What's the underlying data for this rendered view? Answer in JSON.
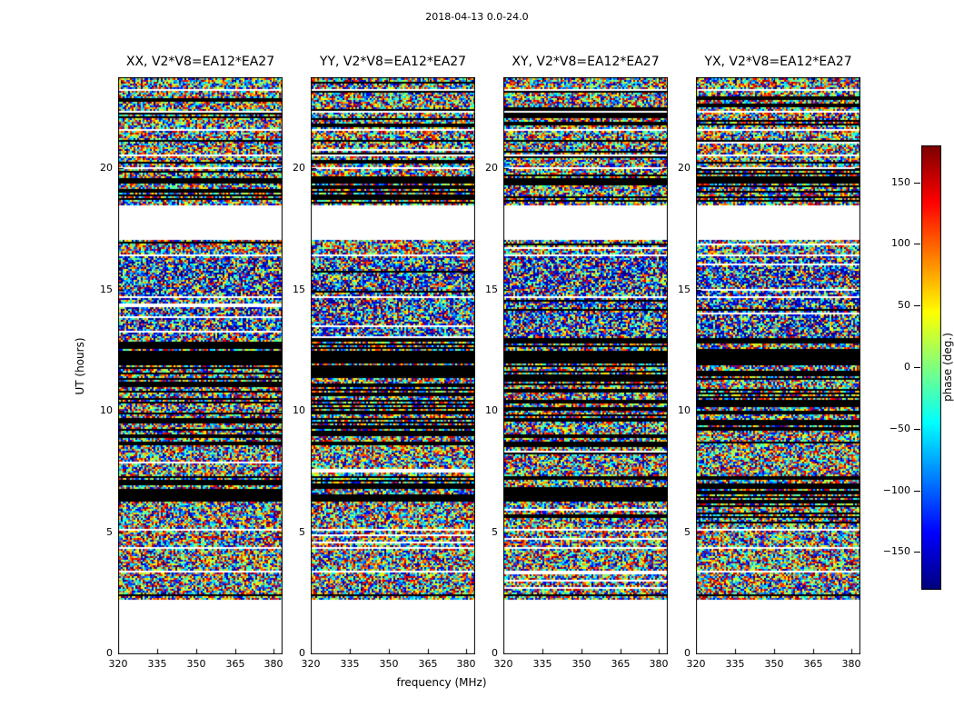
{
  "figure": {
    "title": "2018-04-13 0.0-24.0",
    "xlabel": "frequency (MHz)",
    "ylabel": "UT (hours)",
    "colorbar_label": "phase (deg.)",
    "background": "#ffffff"
  },
  "chart_data": {
    "type": "heatmap",
    "title": "2018-04-13 0.0-24.0",
    "xlabel": "frequency (MHz)",
    "ylabel": "UT (hours)",
    "xlim": [
      320,
      383
    ],
    "xticks": [
      320,
      335,
      350,
      365,
      380
    ],
    "ylim": [
      0,
      23.75
    ],
    "yticks": [
      0,
      5,
      10,
      15,
      20
    ],
    "panels": [
      {
        "corr": "XX",
        "title": "XX, V2*V8=EA12*EA27"
      },
      {
        "corr": "YY",
        "title": "YY, V2*V8=EA12*EA27"
      },
      {
        "corr": "XY",
        "title": "XY, V2*V8=EA12*EA27"
      },
      {
        "corr": "YX",
        "title": "YX, V2*V8=EA12*EA27"
      }
    ],
    "colorbar": {
      "label": "phase (deg.)",
      "min": -180,
      "max": 180,
      "ticks": [
        150,
        100,
        50,
        0,
        -50,
        -100,
        -150
      ],
      "colormap": "jet"
    },
    "values": "random-looking interferometric phase noise (uniform -180..180 deg) organized in horizontal time bands; same band structure in all four correlation panels",
    "band_format": "[ut_start_hours, ut_end_hours, kind, black_row_fraction] where kind is blank|noise|noise_blue|black|mix",
    "bands": [
      [
        0.0,
        2.3,
        "blank"
      ],
      [
        2.3,
        2.44,
        "noise"
      ],
      [
        2.44,
        2.5,
        "black"
      ],
      [
        2.5,
        3.42,
        "noise"
      ],
      [
        3.42,
        3.5,
        "blank"
      ],
      [
        3.5,
        4.38,
        "noise"
      ],
      [
        4.38,
        4.46,
        "blank"
      ],
      [
        4.46,
        5.12,
        "noise"
      ],
      [
        5.12,
        5.18,
        "blank"
      ],
      [
        5.18,
        6.2,
        "noise"
      ],
      [
        6.2,
        7.4,
        "mix",
        0.55
      ],
      [
        7.4,
        8.45,
        "noise"
      ],
      [
        8.45,
        9.0,
        "mix",
        0.3
      ],
      [
        9.0,
        12.0,
        "mix",
        0.45
      ],
      [
        12.0,
        12.55,
        "black"
      ],
      [
        12.55,
        13.05,
        "mix",
        0.5
      ],
      [
        13.05,
        14.72,
        "noise_blue"
      ],
      [
        14.72,
        14.8,
        "blank"
      ],
      [
        14.8,
        16.42,
        "noise_blue"
      ],
      [
        16.42,
        16.5,
        "blank"
      ],
      [
        16.5,
        16.95,
        "noise"
      ],
      [
        16.95,
        17.1,
        "mix",
        0.4
      ],
      [
        17.1,
        18.55,
        "blank"
      ],
      [
        18.55,
        19.4,
        "mix",
        0.3
      ],
      [
        19.4,
        19.62,
        "black"
      ],
      [
        19.62,
        20.0,
        "mix",
        0.28
      ],
      [
        20.0,
        20.07,
        "blank"
      ],
      [
        20.07,
        20.5,
        "mix",
        0.28
      ],
      [
        20.5,
        20.6,
        "blank"
      ],
      [
        20.6,
        21.12,
        "noise"
      ],
      [
        21.12,
        21.2,
        "black"
      ],
      [
        21.2,
        21.56,
        "noise"
      ],
      [
        21.56,
        21.64,
        "blank"
      ],
      [
        21.64,
        22.32,
        "mix",
        0.3
      ],
      [
        22.32,
        22.4,
        "blank"
      ],
      [
        22.4,
        23.2,
        "mix",
        0.25
      ],
      [
        23.2,
        23.28,
        "blank"
      ],
      [
        23.28,
        23.76,
        "noise"
      ]
    ]
  }
}
